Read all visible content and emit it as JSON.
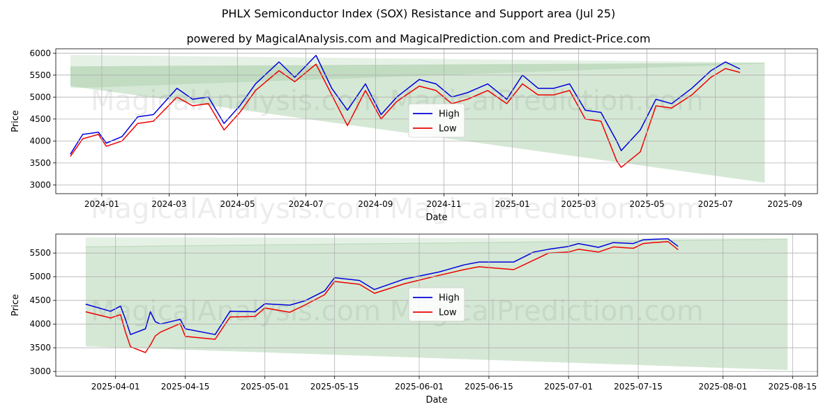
{
  "title": "PHLX Semiconductor Index (SOX) Resistance and Support area (Jul 25)",
  "subtitle": "powered by MagicalAnalysis.com and MagicalPrediction.com and Predict-Price.com",
  "watermark": "MagicalAnalysis.com    MagicalPrediction.com",
  "colors": {
    "high": "#0000dd",
    "low": "#ee0000",
    "band": "#2e8b2e"
  },
  "chart_data": [
    {
      "type": "line",
      "xlabel": "Date",
      "ylabel": "Price",
      "grid": true,
      "legend": "center",
      "x_tick_labels": [
        "2024-01",
        "2024-03",
        "2024-05",
        "2024-07",
        "2024-09",
        "2024-11",
        "2025-01",
        "2025-03",
        "2025-05",
        "2025-07",
        "2025-09"
      ],
      "x_tick_dates": [
        "2024-01-01",
        "2024-03-01",
        "2024-05-01",
        "2024-07-01",
        "2024-09-01",
        "2024-11-01",
        "2025-01-01",
        "2025-03-01",
        "2025-05-01",
        "2025-07-01",
        "2025-09-01"
      ],
      "y_ticks": [
        3000,
        3500,
        4000,
        4500,
        5000,
        5500,
        6000
      ],
      "xlim": [
        "2023-11-21",
        "2025-09-30"
      ],
      "ylim": [
        2800,
        6100
      ],
      "series": [
        {
          "name": "High",
          "x": [
            "2023-12-04",
            "2023-12-15",
            "2023-12-29",
            "2024-01-05",
            "2024-01-19",
            "2024-02-02",
            "2024-02-16",
            "2024-03-08",
            "2024-03-22",
            "2024-04-05",
            "2024-04-19",
            "2024-05-03",
            "2024-05-17",
            "2024-06-07",
            "2024-06-21",
            "2024-07-10",
            "2024-07-24",
            "2024-08-07",
            "2024-08-23",
            "2024-09-06",
            "2024-09-20",
            "2024-10-10",
            "2024-10-25",
            "2024-11-08",
            "2024-11-22",
            "2024-12-10",
            "2024-12-27",
            "2025-01-10",
            "2025-01-24",
            "2025-02-07",
            "2025-02-21",
            "2025-03-07",
            "2025-03-21",
            "2025-04-04",
            "2025-04-08",
            "2025-04-25",
            "2025-05-09",
            "2025-05-23",
            "2025-06-10",
            "2025-06-27",
            "2025-07-10",
            "2025-07-23"
          ],
          "y": [
            3700,
            4150,
            4200,
            3950,
            4100,
            4550,
            4600,
            5200,
            4950,
            5000,
            4400,
            4800,
            5300,
            5800,
            5450,
            5950,
            5200,
            4700,
            5300,
            4600,
            5000,
            5400,
            5300,
            5000,
            5100,
            5300,
            4950,
            5500,
            5200,
            5200,
            5300,
            4700,
            4650,
            4000,
            3780,
            4250,
            4950,
            4850,
            5200,
            5600,
            5800,
            5640
          ]
        },
        {
          "name": "Low",
          "x": [
            "2023-12-04",
            "2023-12-15",
            "2023-12-29",
            "2024-01-05",
            "2024-01-19",
            "2024-02-02",
            "2024-02-16",
            "2024-03-08",
            "2024-03-22",
            "2024-04-05",
            "2024-04-19",
            "2024-05-03",
            "2024-05-17",
            "2024-06-07",
            "2024-06-21",
            "2024-07-10",
            "2024-07-24",
            "2024-08-07",
            "2024-08-23",
            "2024-09-06",
            "2024-09-20",
            "2024-10-10",
            "2024-10-25",
            "2024-11-08",
            "2024-11-22",
            "2024-12-10",
            "2024-12-27",
            "2025-01-10",
            "2025-01-24",
            "2025-02-07",
            "2025-02-21",
            "2025-03-07",
            "2025-03-21",
            "2025-04-04",
            "2025-04-08",
            "2025-04-25",
            "2025-05-09",
            "2025-05-23",
            "2025-06-10",
            "2025-06-27",
            "2025-07-10",
            "2025-07-23"
          ],
          "y": [
            3650,
            4050,
            4150,
            3880,
            4000,
            4400,
            4450,
            5000,
            4800,
            4850,
            4250,
            4650,
            5150,
            5600,
            5350,
            5750,
            5050,
            4350,
            5150,
            4500,
            4900,
            5250,
            5150,
            4850,
            4950,
            5150,
            4850,
            5300,
            5050,
            5050,
            5150,
            4500,
            4450,
            3550,
            3400,
            3750,
            4800,
            4750,
            5050,
            5450,
            5650,
            5560
          ]
        }
      ],
      "bands": [
        {
          "x": [
            "2023-12-04",
            "2025-08-14"
          ],
          "upper": [
            5960,
            5790
          ],
          "lower": [
            5200,
            5760
          ]
        },
        {
          "x": [
            "2023-12-04",
            "2025-08-14"
          ],
          "upper": [
            5700,
            5780
          ],
          "lower": [
            5250,
            3050
          ]
        }
      ]
    },
    {
      "type": "line",
      "xlabel": "Date",
      "ylabel": "Price",
      "grid": true,
      "legend": "center",
      "x_tick_labels": [
        "2025-04-01",
        "2025-04-15",
        "2025-05-01",
        "2025-05-15",
        "2025-06-01",
        "2025-06-15",
        "2025-07-01",
        "2025-07-15",
        "2025-08-01",
        "2025-08-15"
      ],
      "x_tick_dates": [
        "2025-04-01",
        "2025-04-15",
        "2025-05-01",
        "2025-05-15",
        "2025-06-01",
        "2025-06-15",
        "2025-07-01",
        "2025-07-15",
        "2025-08-01",
        "2025-08-15"
      ],
      "y_ticks": [
        3000,
        3500,
        4000,
        4500,
        5000,
        5500
      ],
      "xlim": [
        "2025-03-20",
        "2025-08-20"
      ],
      "ylim": [
        2900,
        5900
      ],
      "series": [
        {
          "name": "High",
          "x": [
            "2025-03-26",
            "2025-03-31",
            "2025-04-02",
            "2025-04-03",
            "2025-04-04",
            "2025-04-07",
            "2025-04-08",
            "2025-04-09",
            "2025-04-10",
            "2025-04-14",
            "2025-04-15",
            "2025-04-21",
            "2025-04-24",
            "2025-04-29",
            "2025-05-01",
            "2025-05-06",
            "2025-05-09",
            "2025-05-13",
            "2025-05-15",
            "2025-05-20",
            "2025-05-23",
            "2025-05-29",
            "2025-06-05",
            "2025-06-10",
            "2025-06-13",
            "2025-06-20",
            "2025-06-24",
            "2025-06-27",
            "2025-07-01",
            "2025-07-03",
            "2025-07-07",
            "2025-07-10",
            "2025-07-14",
            "2025-07-16",
            "2025-07-18",
            "2025-07-21",
            "2025-07-23"
          ],
          "y": [
            4420,
            4270,
            4380,
            4100,
            3780,
            3900,
            4260,
            4050,
            4000,
            4100,
            3900,
            3780,
            4270,
            4260,
            4430,
            4400,
            4490,
            4700,
            4980,
            4920,
            4730,
            4950,
            5100,
            5250,
            5310,
            5310,
            5520,
            5580,
            5640,
            5700,
            5620,
            5720,
            5700,
            5780,
            5790,
            5800,
            5640
          ]
        },
        {
          "name": "Low",
          "x": [
            "2025-03-26",
            "2025-03-31",
            "2025-04-02",
            "2025-04-03",
            "2025-04-04",
            "2025-04-07",
            "2025-04-08",
            "2025-04-09",
            "2025-04-10",
            "2025-04-14",
            "2025-04-15",
            "2025-04-21",
            "2025-04-24",
            "2025-04-29",
            "2025-05-01",
            "2025-05-06",
            "2025-05-09",
            "2025-05-13",
            "2025-05-15",
            "2025-05-20",
            "2025-05-23",
            "2025-05-29",
            "2025-06-05",
            "2025-06-10",
            "2025-06-13",
            "2025-06-20",
            "2025-06-24",
            "2025-06-27",
            "2025-07-01",
            "2025-07-03",
            "2025-07-07",
            "2025-07-10",
            "2025-07-14",
            "2025-07-16",
            "2025-07-18",
            "2025-07-21",
            "2025-07-23"
          ],
          "y": [
            4260,
            4130,
            4200,
            3830,
            3520,
            3400,
            3560,
            3750,
            3830,
            4010,
            3740,
            3680,
            4150,
            4160,
            4340,
            4250,
            4400,
            4620,
            4900,
            4840,
            4650,
            4850,
            5030,
            5150,
            5210,
            5150,
            5350,
            5500,
            5520,
            5580,
            5520,
            5630,
            5600,
            5700,
            5720,
            5740,
            5570
          ]
        }
      ],
      "bands": [
        {
          "x": [
            "2025-03-26",
            "2025-08-14"
          ],
          "upper": [
            5830,
            5810
          ],
          "lower": [
            5620,
            5780
          ]
        },
        {
          "x": [
            "2025-03-26",
            "2025-08-14"
          ],
          "upper": [
            5640,
            5800
          ],
          "lower": [
            3530,
            3030
          ]
        }
      ]
    }
  ]
}
